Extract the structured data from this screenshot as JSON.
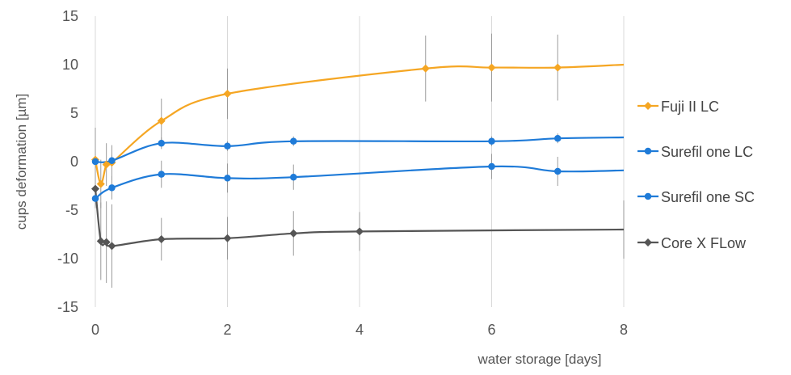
{
  "chart_data": {
    "type": "line",
    "title": "",
    "xlabel": "water storage [days]",
    "ylabel": "cups deformation [µm]",
    "xlim": [
      0,
      8
    ],
    "ylim": [
      -15,
      15
    ],
    "x_ticks": [
      "0",
      "2",
      "4",
      "6",
      "8"
    ],
    "y_ticks": [
      "15",
      "10",
      "5",
      "0",
      "-5",
      "-10",
      "-15"
    ],
    "grid": "vertical",
    "legend_position": "right",
    "series": [
      {
        "name": "Fuji II LC",
        "color": "#F5A623",
        "marker": "diamond",
        "x": [
          0,
          0.083,
          0.167,
          0.25,
          1,
          2,
          5,
          6,
          7,
          8
        ],
        "y": [
          0.2,
          -2.3,
          -0.3,
          -0.1,
          4.2,
          7.0,
          9.6,
          9.7,
          9.7,
          10.0
        ],
        "err": [
          3.3,
          2.5,
          2.2,
          1.8,
          2.3,
          2.6,
          3.4,
          3.5,
          3.4,
          0
        ]
      },
      {
        "name": "Surefil one LC",
        "color": "#1F7BD8",
        "marker": "circle",
        "x": [
          0,
          0.25,
          1,
          2,
          3,
          6,
          7,
          8
        ],
        "y": [
          0.0,
          0.1,
          1.9,
          1.6,
          2.1,
          2.1,
          2.4,
          2.5
        ],
        "err": [
          0.6,
          0.6,
          0.6,
          0.5,
          0.5,
          0.5,
          0.5,
          0
        ]
      },
      {
        "name": "Surefil one SC",
        "color": "#1F7BD8",
        "marker": "circle",
        "x": [
          0,
          0.25,
          1,
          2,
          3,
          6,
          7,
          8
        ],
        "y": [
          -3.8,
          -2.7,
          -1.3,
          -1.7,
          -1.6,
          -0.5,
          -1.0,
          -0.9
        ],
        "err": [
          1.0,
          1.2,
          1.4,
          1.5,
          1.3,
          1.3,
          1.5,
          0
        ]
      },
      {
        "name": "Core X FLow",
        "color": "#555555",
        "marker": "diamond",
        "x": [
          0,
          0.083,
          0.167,
          0.25,
          1,
          2,
          3,
          4,
          8
        ],
        "y": [
          -2.8,
          -8.2,
          -8.3,
          -8.7,
          -8.0,
          -7.9,
          -7.4,
          -7.2,
          -7.0
        ],
        "err": [
          0,
          4.0,
          4.2,
          4.3,
          2.2,
          2.2,
          2.3,
          2.0,
          3.0
        ]
      }
    ]
  }
}
